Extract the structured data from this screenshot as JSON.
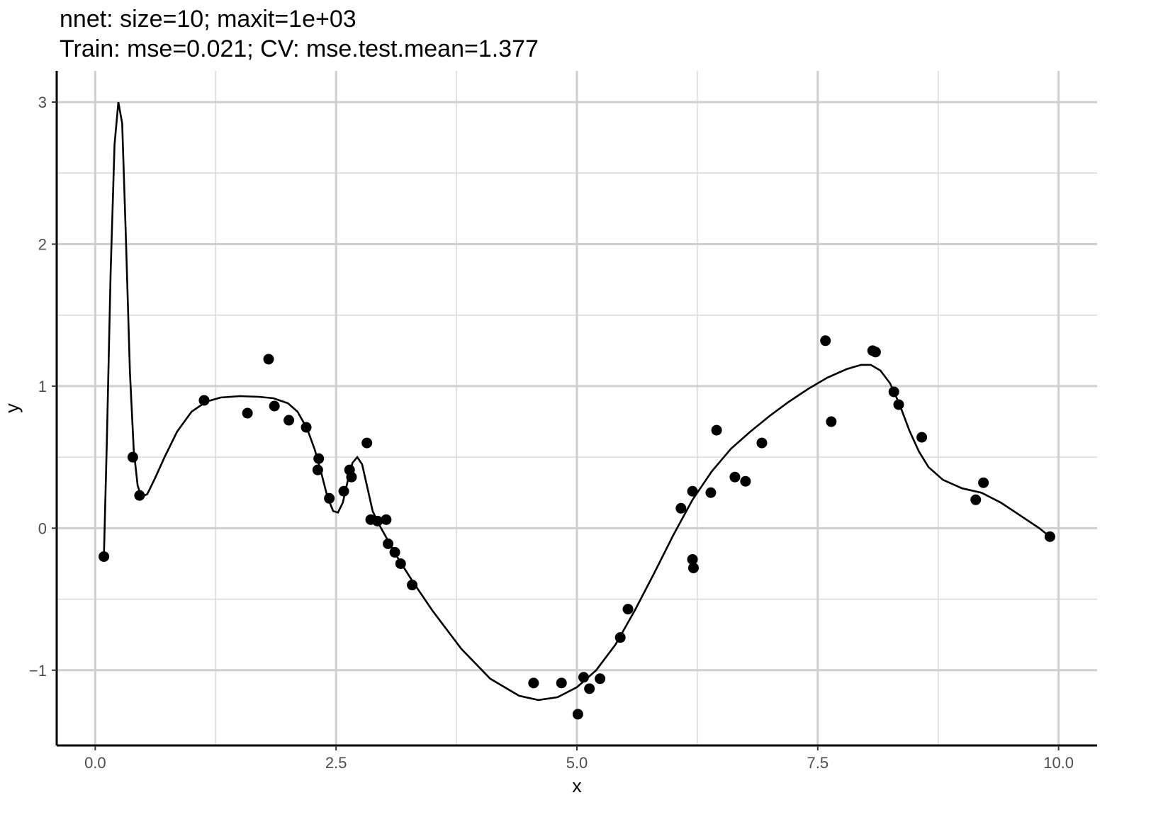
{
  "chart_data": {
    "type": "scatter",
    "title": "nnet: size=10; maxit=1e+03",
    "subtitle": "Train: mse=0.021; CV: mse.test.mean=1.377",
    "xlabel": "x",
    "ylabel": "y",
    "xlim": [
      -0.4,
      10.4
    ],
    "ylim": [
      -1.53,
      3.22
    ],
    "x_ticks": [
      0.0,
      2.5,
      5.0,
      7.5,
      10.0
    ],
    "x_tick_labels": [
      "0.0",
      "2.5",
      "5.0",
      "7.5",
      "10.0"
    ],
    "y_ticks": [
      -1,
      0,
      1,
      2,
      3
    ],
    "y_tick_labels": [
      "−1",
      "0",
      "1",
      "2",
      "3"
    ],
    "grid": true,
    "legend": "none",
    "points": [
      {
        "x": 0.09,
        "y": -0.2
      },
      {
        "x": 0.39,
        "y": 0.5
      },
      {
        "x": 0.46,
        "y": 0.23
      },
      {
        "x": 1.13,
        "y": 0.9
      },
      {
        "x": 1.58,
        "y": 0.81
      },
      {
        "x": 1.8,
        "y": 1.19
      },
      {
        "x": 1.86,
        "y": 0.86
      },
      {
        "x": 2.01,
        "y": 0.76
      },
      {
        "x": 2.19,
        "y": 0.71
      },
      {
        "x": 2.32,
        "y": 0.49
      },
      {
        "x": 2.31,
        "y": 0.41
      },
      {
        "x": 2.43,
        "y": 0.21
      },
      {
        "x": 2.58,
        "y": 0.26
      },
      {
        "x": 2.64,
        "y": 0.41
      },
      {
        "x": 2.66,
        "y": 0.36
      },
      {
        "x": 2.82,
        "y": 0.6
      },
      {
        "x": 2.86,
        "y": 0.06
      },
      {
        "x": 2.93,
        "y": 0.05
      },
      {
        "x": 3.02,
        "y": 0.06
      },
      {
        "x": 3.04,
        "y": -0.11
      },
      {
        "x": 3.11,
        "y": -0.17
      },
      {
        "x": 3.17,
        "y": -0.25
      },
      {
        "x": 3.29,
        "y": -0.4
      },
      {
        "x": 4.55,
        "y": -1.09
      },
      {
        "x": 4.84,
        "y": -1.09
      },
      {
        "x": 5.01,
        "y": -1.31
      },
      {
        "x": 5.07,
        "y": -1.05
      },
      {
        "x": 5.13,
        "y": -1.13
      },
      {
        "x": 5.24,
        "y": -1.06
      },
      {
        "x": 5.45,
        "y": -0.77
      },
      {
        "x": 5.53,
        "y": -0.57
      },
      {
        "x": 6.08,
        "y": 0.14
      },
      {
        "x": 6.2,
        "y": 0.26
      },
      {
        "x": 6.2,
        "y": -0.22
      },
      {
        "x": 6.21,
        "y": -0.28
      },
      {
        "x": 6.39,
        "y": 0.25
      },
      {
        "x": 6.45,
        "y": 0.69
      },
      {
        "x": 6.64,
        "y": 0.36
      },
      {
        "x": 6.75,
        "y": 0.33
      },
      {
        "x": 6.92,
        "y": 0.6
      },
      {
        "x": 7.58,
        "y": 1.32
      },
      {
        "x": 7.64,
        "y": 0.75
      },
      {
        "x": 8.07,
        "y": 1.25
      },
      {
        "x": 8.1,
        "y": 1.24
      },
      {
        "x": 8.29,
        "y": 0.96
      },
      {
        "x": 8.34,
        "y": 0.87
      },
      {
        "x": 8.58,
        "y": 0.64
      },
      {
        "x": 9.14,
        "y": 0.2
      },
      {
        "x": 9.22,
        "y": 0.32
      },
      {
        "x": 9.91,
        "y": -0.06
      }
    ],
    "fit_line": [
      [
        0.09,
        -0.2
      ],
      [
        0.12,
        0.6
      ],
      [
        0.16,
        1.8
      ],
      [
        0.2,
        2.7
      ],
      [
        0.24,
        3.0
      ],
      [
        0.28,
        2.85
      ],
      [
        0.32,
        2.0
      ],
      [
        0.36,
        1.1
      ],
      [
        0.4,
        0.55
      ],
      [
        0.44,
        0.3
      ],
      [
        0.48,
        0.22
      ],
      [
        0.54,
        0.24
      ],
      [
        0.62,
        0.35
      ],
      [
        0.72,
        0.5
      ],
      [
        0.85,
        0.68
      ],
      [
        1.0,
        0.82
      ],
      [
        1.15,
        0.89
      ],
      [
        1.3,
        0.92
      ],
      [
        1.5,
        0.93
      ],
      [
        1.7,
        0.925
      ],
      [
        1.85,
        0.915
      ],
      [
        2.0,
        0.88
      ],
      [
        2.1,
        0.82
      ],
      [
        2.2,
        0.7
      ],
      [
        2.28,
        0.55
      ],
      [
        2.35,
        0.38
      ],
      [
        2.41,
        0.22
      ],
      [
        2.47,
        0.12
      ],
      [
        2.52,
        0.11
      ],
      [
        2.57,
        0.18
      ],
      [
        2.62,
        0.33
      ],
      [
        2.67,
        0.46
      ],
      [
        2.72,
        0.5
      ],
      [
        2.77,
        0.45
      ],
      [
        2.82,
        0.3
      ],
      [
        2.88,
        0.12
      ],
      [
        2.95,
        0.02
      ],
      [
        3.05,
        -0.1
      ],
      [
        3.15,
        -0.22
      ],
      [
        3.3,
        -0.38
      ],
      [
        3.5,
        -0.58
      ],
      [
        3.8,
        -0.85
      ],
      [
        4.1,
        -1.06
      ],
      [
        4.4,
        -1.18
      ],
      [
        4.6,
        -1.21
      ],
      [
        4.8,
        -1.19
      ],
      [
        5.0,
        -1.12
      ],
      [
        5.2,
        -1.0
      ],
      [
        5.4,
        -0.82
      ],
      [
        5.6,
        -0.58
      ],
      [
        5.8,
        -0.32
      ],
      [
        6.0,
        -0.05
      ],
      [
        6.2,
        0.2
      ],
      [
        6.4,
        0.4
      ],
      [
        6.6,
        0.56
      ],
      [
        6.8,
        0.68
      ],
      [
        7.0,
        0.79
      ],
      [
        7.2,
        0.89
      ],
      [
        7.4,
        0.98
      ],
      [
        7.6,
        1.06
      ],
      [
        7.8,
        1.12
      ],
      [
        7.95,
        1.15
      ],
      [
        8.05,
        1.15
      ],
      [
        8.15,
        1.11
      ],
      [
        8.25,
        1.02
      ],
      [
        8.35,
        0.87
      ],
      [
        8.45,
        0.69
      ],
      [
        8.55,
        0.54
      ],
      [
        8.65,
        0.43
      ],
      [
        8.8,
        0.34
      ],
      [
        9.0,
        0.28
      ],
      [
        9.2,
        0.25
      ],
      [
        9.4,
        0.18
      ],
      [
        9.6,
        0.09
      ],
      [
        9.8,
        0.0
      ],
      [
        9.91,
        -0.06
      ]
    ]
  }
}
